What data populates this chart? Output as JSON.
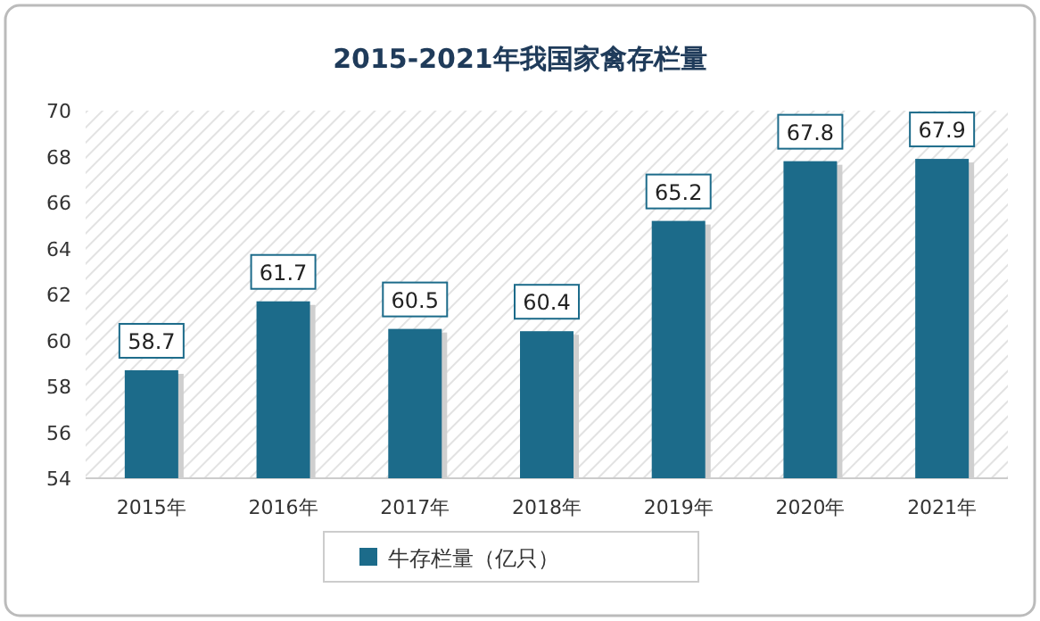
{
  "chart_data": {
    "type": "bar",
    "title": "2015-2021年我国家禽存栏量",
    "categories": [
      "2015年",
      "2016年",
      "2017年",
      "2018年",
      "2019年",
      "2020年",
      "2021年"
    ],
    "series": [
      {
        "name": "牛存栏量（亿只）",
        "color": "#1c6b8a",
        "values": [
          58.7,
          61.7,
          60.5,
          60.4,
          65.2,
          67.8,
          67.9
        ]
      }
    ],
    "ylim": [
      54,
      70
    ],
    "yticks": [
      54,
      56,
      58,
      60,
      62,
      64,
      66,
      68,
      70
    ],
    "data_labels": true,
    "legend": "bottom",
    "grid": false
  }
}
